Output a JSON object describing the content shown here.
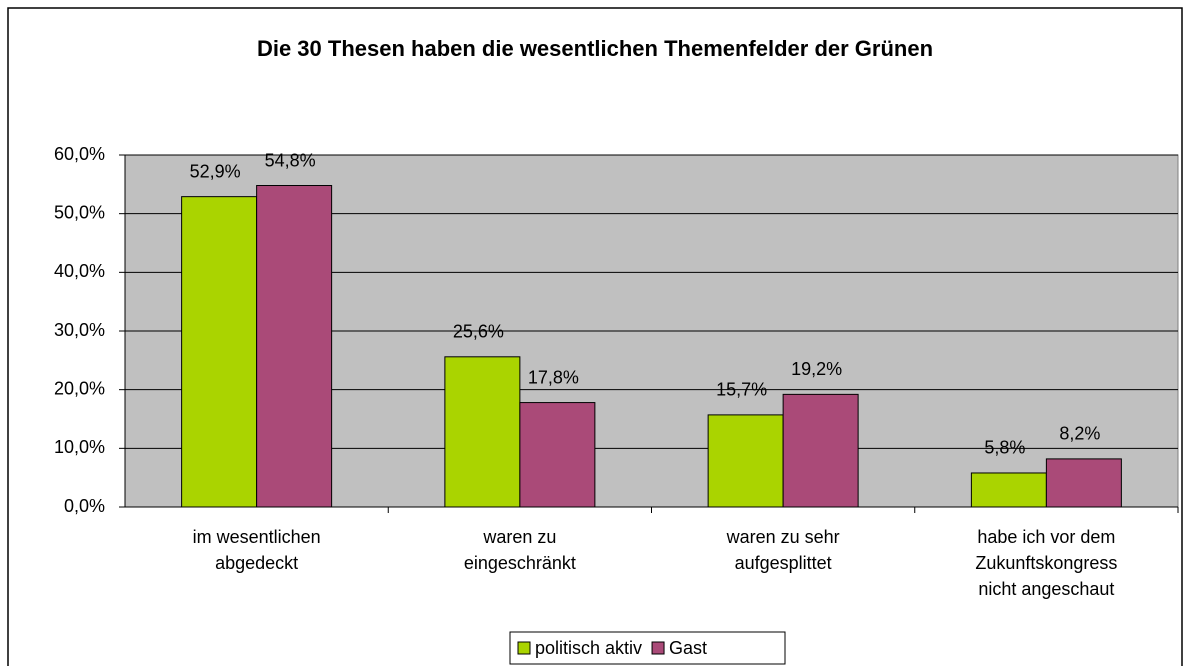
{
  "chart_data": {
    "type": "bar",
    "title": "Die 30 Thesen haben die wesentlichen Themenfelder der Grünen",
    "categories": [
      [
        "im wesentlichen",
        "abgedeckt"
      ],
      [
        "waren zu",
        "eingeschränkt"
      ],
      [
        "waren zu sehr",
        "aufgesplittet"
      ],
      [
        "habe ich vor dem",
        "Zukunftskongress",
        "nicht angeschaut"
      ]
    ],
    "series": [
      {
        "name": "politisch aktiv",
        "color": "#aad400",
        "values": [
          52.9,
          25.6,
          15.7,
          5.8
        ],
        "value_labels": [
          "52,9%",
          "25,6%",
          "15,7%",
          "5,8%"
        ]
      },
      {
        "name": "Gast",
        "color": "#aa4a78",
        "values": [
          54.8,
          17.8,
          19.2,
          8.2
        ],
        "value_labels": [
          "54,8%",
          "17,8%",
          "19,2%",
          "8,2%"
        ]
      }
    ],
    "ylim": [
      0,
      60
    ],
    "yticks": [
      {
        "value": 0,
        "label": "0,0%"
      },
      {
        "value": 10,
        "label": "10,0%"
      },
      {
        "value": 20,
        "label": "20,0%"
      },
      {
        "value": 30,
        "label": "30,0%"
      },
      {
        "value": 40,
        "label": "40,0%"
      },
      {
        "value": 50,
        "label": "50,0%"
      },
      {
        "value": 60,
        "label": "60,0%"
      }
    ],
    "grid": true
  }
}
